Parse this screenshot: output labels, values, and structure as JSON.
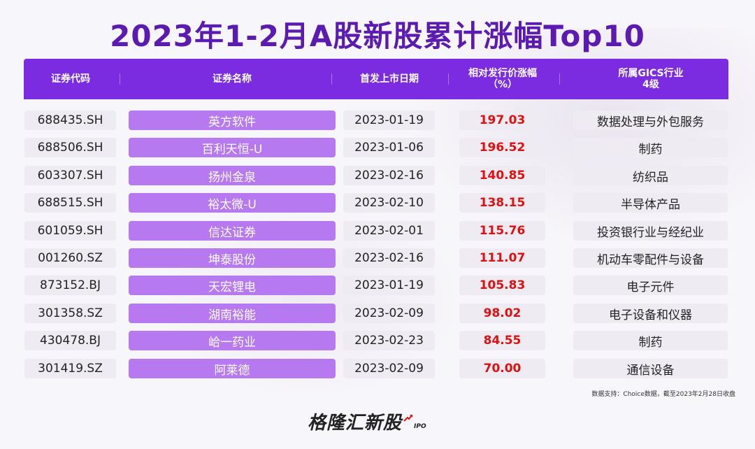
{
  "title": "2023年1-2月A股新股累计涨幅Top10",
  "headers": {
    "code": "证券代码",
    "name": "证券名称",
    "date": "首发上市日期",
    "pct_line1": "相对发行价涨幅",
    "pct_line2": "（%）",
    "industry_line1": "所属GICS行业",
    "industry_line2": "4级"
  },
  "rows": [
    {
      "code": "688435.SH",
      "name": "英方软件",
      "date": "2023-01-19",
      "pct": "197.03",
      "industry": "数据处理与外包服务"
    },
    {
      "code": "688506.SH",
      "name": "百利天恒-U",
      "date": "2023-01-06",
      "pct": "196.52",
      "industry": "制药"
    },
    {
      "code": "603307.SH",
      "name": "扬州金泉",
      "date": "2023-02-16",
      "pct": "140.85",
      "industry": "纺织品"
    },
    {
      "code": "688515.SH",
      "name": "裕太微-U",
      "date": "2023-02-10",
      "pct": "138.15",
      "industry": "半导体产品"
    },
    {
      "code": "601059.SH",
      "name": "信达证券",
      "date": "2023-02-01",
      "pct": "115.76",
      "industry": "投资银行业与经纪业"
    },
    {
      "code": "001260.SZ",
      "name": "坤泰股份",
      "date": "2023-02-16",
      "pct": "111.07",
      "industry": "机动车零配件与设备"
    },
    {
      "code": "873152.BJ",
      "name": "天宏锂电",
      "date": "2023-01-19",
      "pct": "105.83",
      "industry": "电子元件"
    },
    {
      "code": "301358.SZ",
      "name": "湖南裕能",
      "date": "2023-02-09",
      "pct": "98.02",
      "industry": "电子设备和仪器"
    },
    {
      "code": "430478.BJ",
      "name": "峆一药业",
      "date": "2023-02-23",
      "pct": "84.55",
      "industry": "制药"
    },
    {
      "code": "301419.SZ",
      "name": "阿莱德",
      "date": "2023-02-09",
      "pct": "70.00",
      "industry": "通信设备"
    }
  ],
  "source": "数据支持：Choice数据，截至2023年2月28日收盘",
  "logo": {
    "text": "格隆汇新股",
    "suffix": "IPO"
  },
  "colors": {
    "accent": "#7b2be0",
    "title": "#5b1bb1",
    "name_cell": "#b679f0",
    "pct_text": "#e01010"
  }
}
